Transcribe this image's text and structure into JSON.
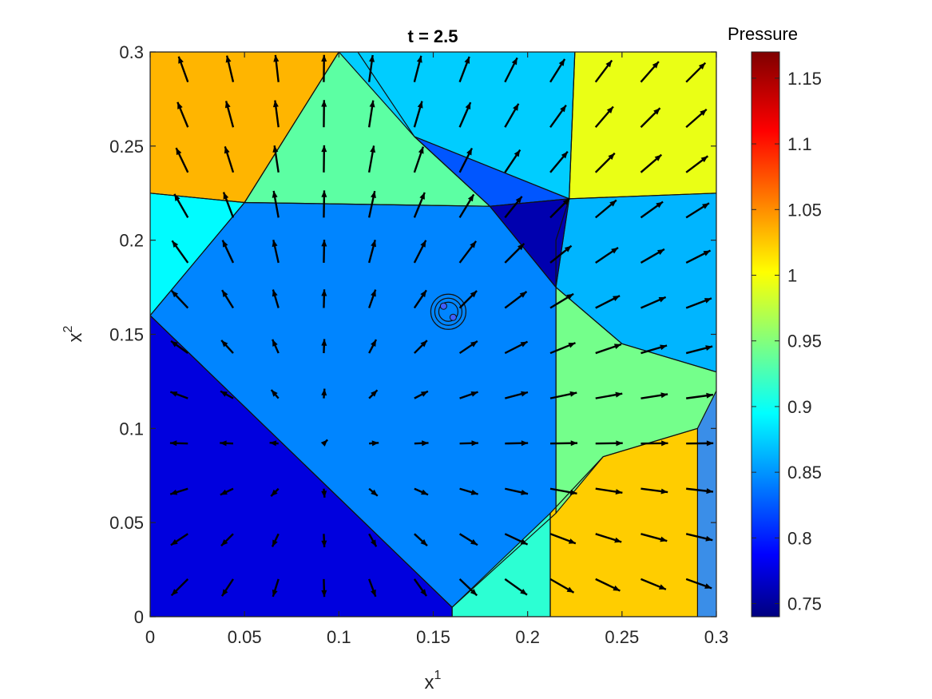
{
  "chart_data": {
    "type": "heatmap",
    "title": "t = 2.5",
    "xlabel_base": "x",
    "xlabel_sup": "1",
    "ylabel_base": "x",
    "ylabel_sup": "2",
    "xlim": [
      0,
      0.3
    ],
    "ylim": [
      0,
      0.3
    ],
    "x_ticks": [
      "0",
      "0.05",
      "0.1",
      "0.15",
      "0.2",
      "0.25",
      "0.3"
    ],
    "y_ticks": [
      "0",
      "0.05",
      "0.1",
      "0.15",
      "0.2",
      "0.25",
      "0.3"
    ],
    "colorbar": {
      "title": "Pressure",
      "range": [
        0.74,
        1.17
      ],
      "ticks": [
        "0.75",
        "0.8",
        "0.85",
        "0.9",
        "0.95",
        "1",
        "1.05",
        "1.1",
        "1.15"
      ],
      "colormap": "jet"
    },
    "regions": [
      {
        "name": "lower-left",
        "value": 0.78,
        "polygon": [
          [
            0,
            0
          ],
          [
            0.16,
            0
          ],
          [
            0.16,
            0.005
          ],
          [
            0,
            0.16
          ]
        ]
      },
      {
        "name": "central",
        "value": 0.85,
        "polygon": [
          [
            0,
            0.16
          ],
          [
            0.16,
            0.005
          ],
          [
            0.215,
            0.055
          ],
          [
            0.215,
            0.175
          ],
          [
            0.18,
            0.218
          ],
          [
            0.05,
            0.22
          ]
        ]
      },
      {
        "name": "lower-middle",
        "value": 0.92,
        "polygon": [
          [
            0.16,
            0
          ],
          [
            0.212,
            0
          ],
          [
            0.212,
            0.055
          ],
          [
            0.16,
            0.005
          ]
        ]
      },
      {
        "name": "lower-right",
        "value": 1.03,
        "polygon": [
          [
            0.212,
            0
          ],
          [
            0.29,
            0
          ],
          [
            0.29,
            0.1
          ],
          [
            0.24,
            0.085
          ],
          [
            0.212,
            0.055
          ]
        ]
      },
      {
        "name": "right-middle",
        "value": 0.95,
        "polygon": [
          [
            0.215,
            0.055
          ],
          [
            0.24,
            0.085
          ],
          [
            0.29,
            0.1
          ],
          [
            0.3,
            0.12
          ],
          [
            0.3,
            0.13
          ],
          [
            0.25,
            0.145
          ],
          [
            0.215,
            0.175
          ]
        ]
      },
      {
        "name": "right",
        "value": 0.87,
        "polygon": [
          [
            0.215,
            0.175
          ],
          [
            0.25,
            0.145
          ],
          [
            0.3,
            0.13
          ],
          [
            0.3,
            0.225
          ],
          [
            0.222,
            0.222
          ],
          [
            0.215,
            0.2
          ]
        ]
      },
      {
        "name": "dark-triangle",
        "value": 0.76,
        "polygon": [
          [
            0.18,
            0.218
          ],
          [
            0.222,
            0.222
          ],
          [
            0.215,
            0.175
          ]
        ]
      },
      {
        "name": "upper-band",
        "value": 0.83,
        "polygon": [
          [
            0.14,
            0.255
          ],
          [
            0.222,
            0.222
          ],
          [
            0.18,
            0.218
          ]
        ]
      },
      {
        "name": "upper-middle",
        "value": 0.94,
        "polygon": [
          [
            0.05,
            0.22
          ],
          [
            0.18,
            0.218
          ],
          [
            0.14,
            0.255
          ],
          [
            0.11,
            0.3
          ],
          [
            0.1,
            0.3
          ]
        ]
      },
      {
        "name": "top-middle",
        "value": 0.88,
        "polygon": [
          [
            0.1,
            0.3
          ],
          [
            0.225,
            0.3
          ],
          [
            0.222,
            0.222
          ],
          [
            0.14,
            0.255
          ]
        ]
      },
      {
        "name": "upper-left",
        "value": 1.04,
        "polygon": [
          [
            0,
            0.3
          ],
          [
            0.1,
            0.3
          ],
          [
            0.05,
            0.22
          ],
          [
            0,
            0.225
          ]
        ]
      },
      {
        "name": "left-middle",
        "value": 0.9,
        "polygon": [
          [
            0,
            0.225
          ],
          [
            0.05,
            0.22
          ],
          [
            0,
            0.16
          ]
        ]
      },
      {
        "name": "upper-right",
        "value": 1.0,
        "polygon": [
          [
            0.225,
            0.3
          ],
          [
            0.3,
            0.3
          ],
          [
            0.3,
            0.225
          ],
          [
            0.222,
            0.222
          ]
        ]
      }
    ],
    "vortex": {
      "x": 0.158,
      "y": 0.162
    }
  }
}
